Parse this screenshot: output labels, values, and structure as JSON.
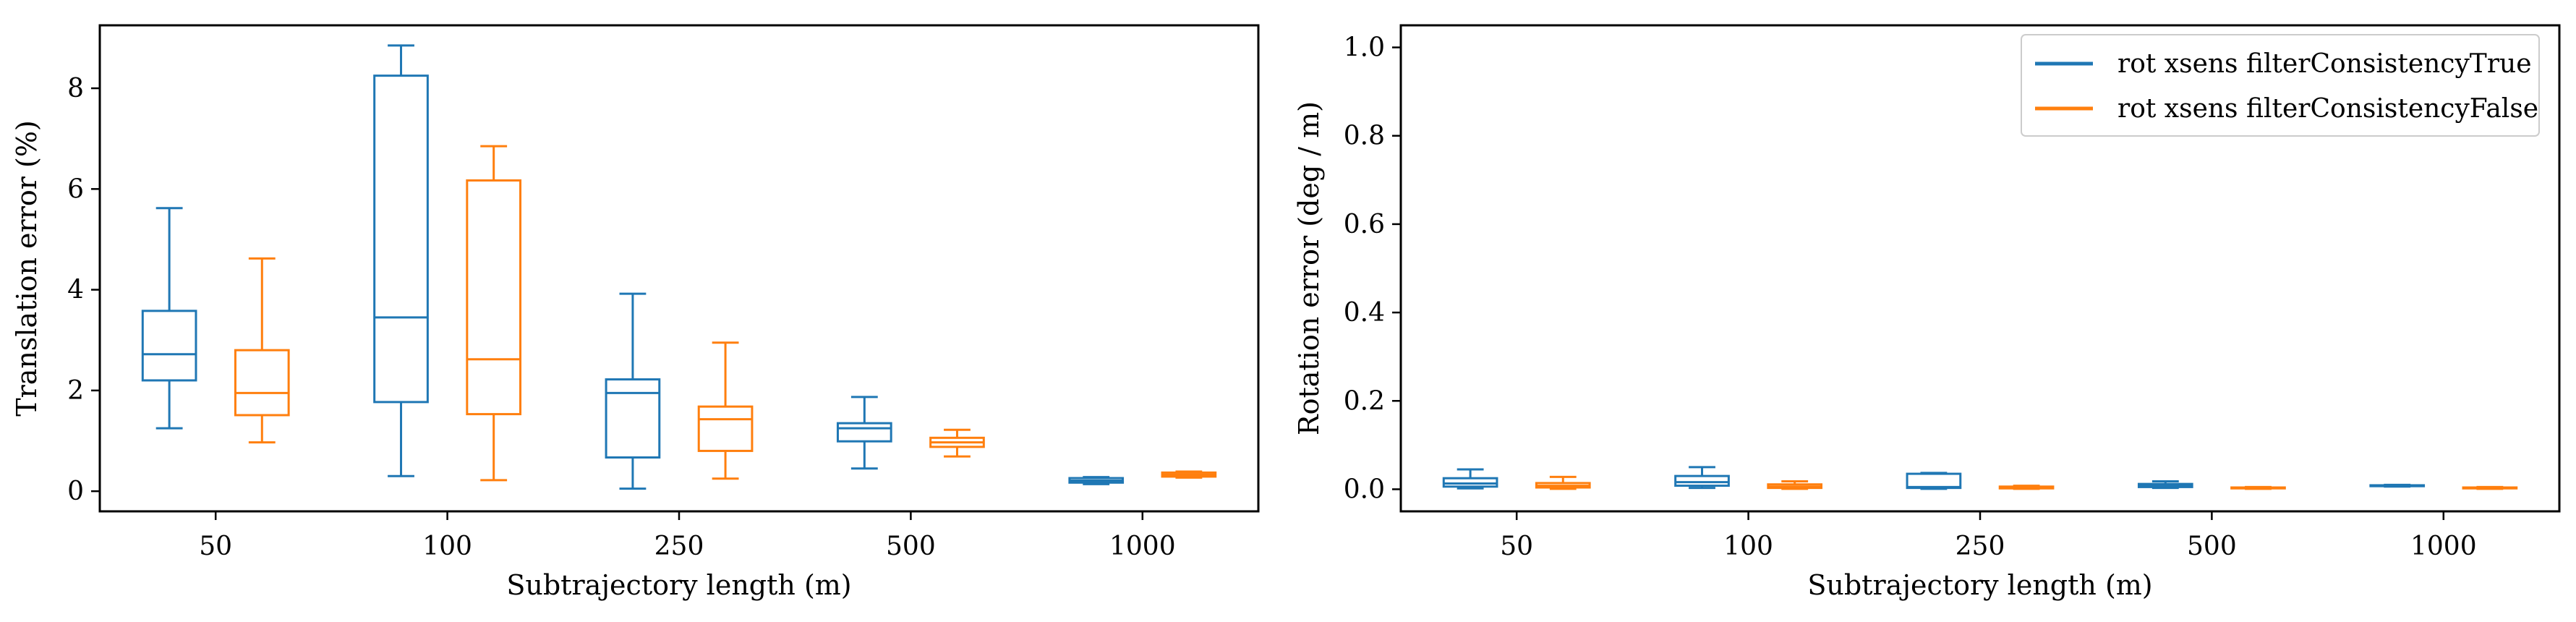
{
  "colors": {
    "series_true": "#1f77b4",
    "series_false": "#ff7f0e",
    "axes": "#000000",
    "background": "#ffffff"
  },
  "chart_data": [
    {
      "type": "box",
      "xlabel": "Subtrajectory length (m)",
      "ylabel": "Translation error (%)",
      "categories": [
        "50",
        "100",
        "250",
        "500",
        "1000"
      ],
      "ylim": [
        -0.4,
        9.25
      ],
      "yticks": [
        0,
        2,
        4,
        6,
        8
      ],
      "grid": false,
      "legend": null,
      "series": [
        {
          "name": "rot xsens filterConsistencyTrue",
          "boxes": [
            {
              "whislo": 1.25,
              "q1": 2.2,
              "med": 2.72,
              "q3": 3.58,
              "whishi": 5.62
            },
            {
              "whislo": 0.3,
              "q1": 1.77,
              "med": 3.45,
              "q3": 8.25,
              "whishi": 8.85
            },
            {
              "whislo": 0.05,
              "q1": 0.67,
              "med": 1.95,
              "q3": 2.22,
              "whishi": 3.92
            },
            {
              "whislo": 0.45,
              "q1": 0.99,
              "med": 1.25,
              "q3": 1.35,
              "whishi": 1.87
            },
            {
              "whislo": 0.14,
              "q1": 0.17,
              "med": 0.21,
              "q3": 0.26,
              "whishi": 0.28
            }
          ]
        },
        {
          "name": "rot xsens filterConsistencyFalse",
          "boxes": [
            {
              "whislo": 0.97,
              "q1": 1.51,
              "med": 1.95,
              "q3": 2.8,
              "whishi": 4.62
            },
            {
              "whislo": 0.22,
              "q1": 1.53,
              "med": 2.62,
              "q3": 6.17,
              "whishi": 6.85
            },
            {
              "whislo": 0.25,
              "q1": 0.8,
              "med": 1.43,
              "q3": 1.68,
              "whishi": 2.95
            },
            {
              "whislo": 0.69,
              "q1": 0.88,
              "med": 0.97,
              "q3": 1.06,
              "whishi": 1.22
            },
            {
              "whislo": 0.27,
              "q1": 0.29,
              "med": 0.33,
              "q3": 0.37,
              "whishi": 0.39
            }
          ]
        }
      ]
    },
    {
      "type": "box",
      "xlabel": "Subtrajectory length (m)",
      "ylabel": "Rotation error (deg / m)",
      "categories": [
        "50",
        "100",
        "250",
        "500",
        "1000"
      ],
      "ylim": [
        -0.05,
        1.05
      ],
      "yticks": [
        0.0,
        0.2,
        0.4,
        0.6,
        0.8,
        1.0
      ],
      "ytick_labels": [
        "0.0",
        "0.2",
        "0.4",
        "0.6",
        "0.8",
        "1.0"
      ],
      "grid": false,
      "legend": "upper right",
      "series": [
        {
          "name": "rot xsens filterConsistencyTrue",
          "boxes": [
            {
              "whislo": 0.002,
              "q1": 0.006,
              "med": 0.013,
              "q3": 0.025,
              "whishi": 0.045
            },
            {
              "whislo": 0.003,
              "q1": 0.008,
              "med": 0.016,
              "q3": 0.03,
              "whishi": 0.05
            },
            {
              "whislo": 0.001,
              "q1": 0.003,
              "med": 0.005,
              "q3": 0.035,
              "whishi": 0.037
            },
            {
              "whislo": 0.003,
              "q1": 0.005,
              "med": 0.008,
              "q3": 0.012,
              "whishi": 0.018
            },
            {
              "whislo": 0.006,
              "q1": 0.007,
              "med": 0.008,
              "q3": 0.009,
              "whishi": 0.01
            }
          ]
        },
        {
          "name": "rot xsens filterConsistencyFalse",
          "boxes": [
            {
              "whislo": 0.001,
              "q1": 0.004,
              "med": 0.008,
              "q3": 0.014,
              "whishi": 0.028
            },
            {
              "whislo": 0.001,
              "q1": 0.003,
              "med": 0.006,
              "q3": 0.011,
              "whishi": 0.018
            },
            {
              "whislo": 0.001,
              "q1": 0.002,
              "med": 0.004,
              "q3": 0.006,
              "whishi": 0.008
            },
            {
              "whislo": 0.001,
              "q1": 0.002,
              "med": 0.003,
              "q3": 0.004,
              "whishi": 0.005
            },
            {
              "whislo": 0.001,
              "q1": 0.002,
              "med": 0.003,
              "q3": 0.004,
              "whishi": 0.005
            }
          ]
        }
      ]
    }
  ]
}
